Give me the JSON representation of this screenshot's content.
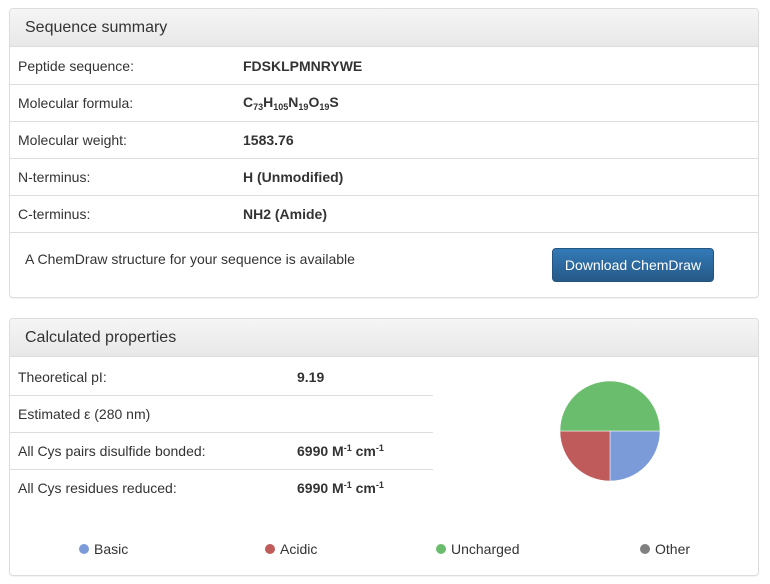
{
  "summary": {
    "title": "Sequence summary",
    "rows": [
      {
        "label": "Peptide sequence:",
        "value": "FDSKLPMNRYWE"
      },
      {
        "label": "Molecular formula:"
      },
      {
        "label": "Molecular weight:",
        "value": "1583.76"
      },
      {
        "label": "N-terminus:",
        "value": "H (Unmodified)"
      },
      {
        "label": "C-terminus:",
        "value": "NH2 (Amide)"
      }
    ],
    "formula": [
      {
        "el": "C",
        "n": "73"
      },
      {
        "el": "H",
        "n": "105"
      },
      {
        "el": "N",
        "n": "19"
      },
      {
        "el": "O",
        "n": "19"
      },
      {
        "el": "S",
        "n": ""
      }
    ],
    "chemdraw_text": "A ChemDraw structure for your sequence is available",
    "download_label": "Download ChemDraw"
  },
  "properties": {
    "title": "Calculated properties",
    "rows": [
      {
        "label": "Theoretical pI:",
        "value": "9.19"
      },
      {
        "label": "Estimated ε (280 nm)",
        "value": ""
      },
      {
        "label": "All Cys pairs disulfide bonded:",
        "value": "6990",
        "unit_a": "M",
        "exp_a": "-1",
        "unit_b": "cm",
        "exp_b": "-1"
      },
      {
        "label": "All Cys residues reduced:",
        "value": "6990",
        "unit_a": "M",
        "exp_a": "-1",
        "unit_b": "cm",
        "exp_b": "-1"
      }
    ]
  },
  "chart_data": {
    "type": "pie",
    "labels": [
      "Basic",
      "Acidic",
      "Uncharged",
      "Other"
    ],
    "counts": [
      3,
      3,
      6,
      0
    ],
    "colors": [
      "#7b9bd8",
      "#bf5b5b",
      "#6bbd6e",
      "#808080"
    ],
    "legend_placement": "bottom"
  }
}
